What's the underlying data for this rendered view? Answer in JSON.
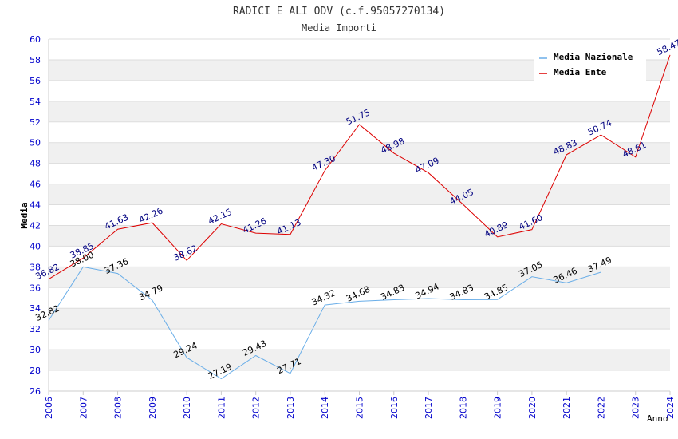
{
  "chart_data": {
    "type": "line",
    "title": "RADICI E ALI ODV (c.f.95057270134)",
    "subtitle": "Media Importi",
    "xlabel": "Anno",
    "ylabel": "Media",
    "ylim": [
      26,
      60
    ],
    "ytick_step": 2,
    "grid": true,
    "legend_position": "top-right",
    "categories": [
      "2006",
      "2007",
      "2008",
      "2009",
      "2010",
      "2011",
      "2012",
      "2013",
      "2014",
      "2015",
      "2016",
      "2017",
      "2018",
      "2019",
      "2020",
      "2021",
      "2022",
      "2023",
      "2024"
    ],
    "series": [
      {
        "name": "Media Nazionale",
        "color": "#6aaee8",
        "label_color": "#000000",
        "values": [
          32.82,
          38.0,
          37.36,
          34.79,
          29.24,
          27.19,
          29.43,
          27.71,
          34.32,
          34.68,
          34.83,
          34.94,
          34.83,
          34.85,
          37.05,
          36.46,
          37.49,
          null,
          null
        ],
        "labels": [
          "32.82",
          "38.00",
          "37.36",
          "34.79",
          "29.24",
          "27.19",
          "29.43",
          "27.71",
          "34.32",
          "34.68",
          "34.83",
          "34.94",
          "34.83",
          "34.85",
          "37.05",
          "36.46",
          "37.49",
          null,
          null
        ]
      },
      {
        "name": "Media Ente",
        "color": "#dd0000",
        "label_color": "#000080",
        "values": [
          36.82,
          38.85,
          41.63,
          42.26,
          38.62,
          42.15,
          41.26,
          41.13,
          47.3,
          51.75,
          48.98,
          47.09,
          44.05,
          40.89,
          41.6,
          48.83,
          50.74,
          48.61,
          58.47
        ],
        "labels": [
          "36.82",
          "38.85",
          "41.63",
          "42.26",
          "38.62",
          "42.15",
          "41.26",
          "41.13",
          "47.30",
          "51.75",
          "48.98",
          "47.09",
          "44.05",
          "40.89",
          "41.60",
          "48.83",
          "50.74",
          "48.61",
          "58.47"
        ]
      }
    ],
    "colors": {
      "axis_tick_text": "#0000cc",
      "grid_band": "#f0f0f0",
      "title": "#333333"
    }
  }
}
